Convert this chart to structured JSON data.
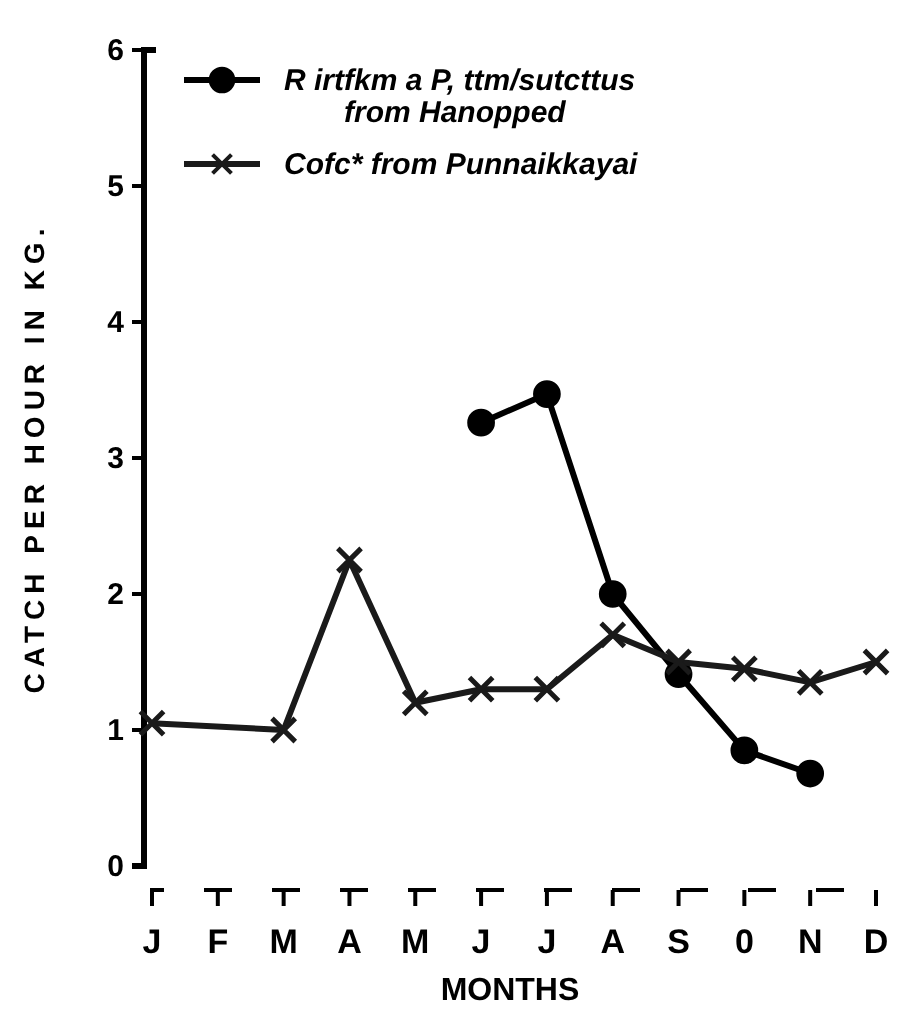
{
  "chart_data": {
    "type": "line",
    "xlabel": "MONTHS",
    "ylabel": "CATCH PER HOUR IN KG.",
    "categories": [
      "J",
      "F",
      "M",
      "A",
      "M",
      "J",
      "J",
      "A",
      "S",
      "0",
      "N",
      "D"
    ],
    "series": [
      {
        "name": "R irtfkm a P, ttm/sutcttus\nfrom Hanopped",
        "color": "#000000",
        "marker": "circle",
        "values": [
          null,
          null,
          null,
          null,
          null,
          3.26,
          3.47,
          2.0,
          1.41,
          0.85,
          0.68,
          null
        ]
      },
      {
        "name": "Cofc* from Punnaikkayai",
        "color": "#1a1a1a",
        "marker": "cross",
        "values": [
          1.05,
          null,
          1.0,
          2.25,
          1.2,
          1.3,
          1.3,
          1.7,
          1.5,
          1.45,
          1.35,
          1.5
        ]
      }
    ],
    "ylim": [
      0,
      6
    ],
    "yticks": [
      0,
      1,
      2,
      3,
      4,
      5,
      6
    ],
    "grid": false,
    "legend": "top"
  }
}
